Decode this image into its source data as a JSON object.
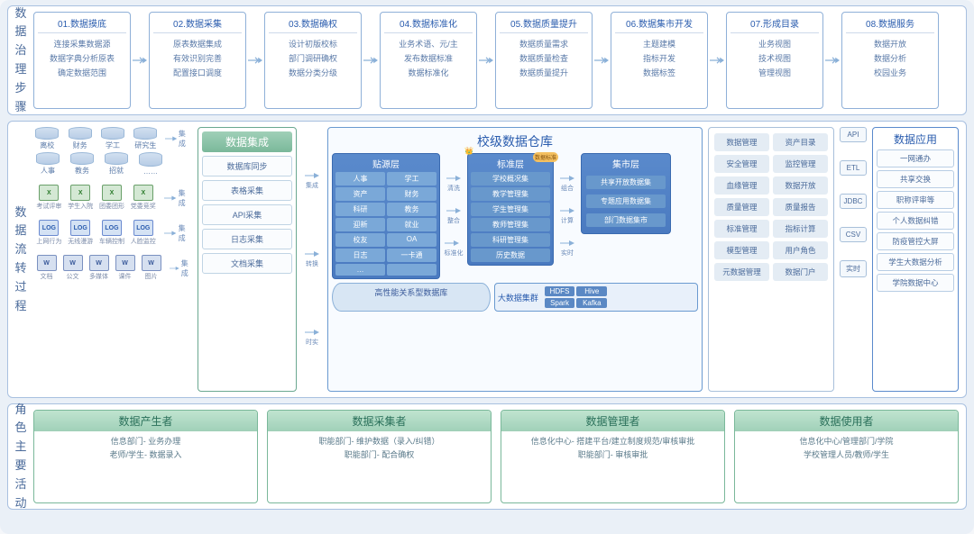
{
  "colors": {
    "border_main": "#a8c0e0",
    "accent_blue": "#2a5cae",
    "accent_green": "#7ab89a",
    "arrow": "#8ab0d8",
    "bg": "#eaf0f7"
  },
  "section1": {
    "label": "数据治理步骤",
    "steps": [
      {
        "title": "01.数据摸底",
        "items": [
          "连接采集数据源",
          "数据字典分析原表",
          "确定数据范围"
        ]
      },
      {
        "title": "02.数据采集",
        "items": [
          "原表数据集成",
          "有效识别完善",
          "配置接口调度"
        ]
      },
      {
        "title": "03.数据确权",
        "items": [
          "设计初版校标",
          "部门调研确权",
          "数据分类分级"
        ]
      },
      {
        "title": "04.数据标准化",
        "items": [
          "业务术语、元/主",
          "发布数据标准",
          "数据标准化"
        ]
      },
      {
        "title": "05.数据质量提升",
        "items": [
          "数据质量需求",
          "数据质量检查",
          "数据质量提升"
        ]
      },
      {
        "title": "06.数据集市开发",
        "items": [
          "主题建模",
          "指标开发",
          "数据标签"
        ]
      },
      {
        "title": "07.形成目录",
        "items": [
          "业务视图",
          "技术视图",
          "管理视图"
        ]
      },
      {
        "title": "08.数据服务",
        "items": [
          "数据开放",
          "数据分析",
          "校园业务"
        ]
      }
    ]
  },
  "section2": {
    "label": "数据流转过程",
    "sources": {
      "dbs1": [
        "离校",
        "财务",
        "学工",
        "研究生"
      ],
      "dbs2": [
        "人事",
        "教务",
        "招就",
        "……"
      ],
      "excel": [
        "考试评审",
        "学生入院",
        "团委团形",
        "党委竞奖"
      ],
      "logs": [
        "上网行为",
        "无线漫游",
        "车辆控制",
        "人脸监控"
      ],
      "docs": [
        "文档",
        "公文",
        "多媒体",
        "课件",
        "图片"
      ],
      "arrows": [
        "集成",
        "集成",
        "集成",
        "集成",
        "集成"
      ]
    },
    "integration": {
      "title": "数据集成",
      "items": [
        "数据库同步",
        "表格采集",
        "API采集",
        "日志采集",
        "文档采集"
      ],
      "arrows": [
        "集成",
        "转换",
        "时实"
      ]
    },
    "warehouse": {
      "title": "校级数据仓库",
      "layer1": {
        "title": "贴源层",
        "cells": [
          "人事",
          "学工",
          "资产",
          "财务",
          "科研",
          "教务",
          "迎新",
          "就业",
          "校友",
          "OA",
          "日志",
          "一卡通",
          "…",
          ""
        ]
      },
      "layer2": {
        "title": "标准层",
        "badge": "数据标准",
        "cells": [
          "学校概况集",
          "教学管理集",
          "学生管理集",
          "教师管理集",
          "科研管理集",
          "历史数据"
        ]
      },
      "layer3": {
        "title": "集市层",
        "cells": [
          "共享开放数据集",
          "专题应用数据集",
          "部门数据集市"
        ]
      },
      "arr12": [
        "清洗",
        "整合",
        "标准化"
      ],
      "arr23": [
        "组合",
        "计算",
        "实时"
      ],
      "db_bar": "高性能关系型数据库",
      "cluster": {
        "title": "大数据集群",
        "cells": [
          "HDFS",
          "Hive",
          "Spark",
          "Kafka"
        ]
      }
    },
    "mgmt": [
      "数据管理",
      "资产目录",
      "安全管理",
      "监控管理",
      "血缘管理",
      "数据开放",
      "质量管理",
      "质量报告",
      "标准管理",
      "指标计算",
      "模型管理",
      "用户角色",
      "元数据管理",
      "数据门户"
    ],
    "api": [
      "API",
      "ETL",
      "JDBC",
      "CSV",
      "实时"
    ],
    "apps": {
      "title": "数据应用",
      "items": [
        "一网通办",
        "共享交换",
        "职称评审等",
        "个人数据纠错",
        "防疫管控大屏",
        "学生大数据分析",
        "学院数据中心"
      ]
    }
  },
  "section3": {
    "label": "角色主要活动",
    "roles": [
      {
        "title": "数据产生者",
        "items": [
          "信息部门- 业务办理",
          "老师/学生- 数据录入"
        ]
      },
      {
        "title": "数据采集者",
        "items": [
          "职能部门- 维护数据（录入/纠错）",
          "职能部门- 配合确权"
        ]
      },
      {
        "title": "数据管理者",
        "items": [
          "信息化中心- 搭建平台/建立制度规范/审核审批",
          "职能部门- 审核审批"
        ]
      },
      {
        "title": "数据使用者",
        "items": [
          "信息化中心/管理部门/学院",
          "学校管理人员/教师/学生"
        ]
      }
    ]
  }
}
